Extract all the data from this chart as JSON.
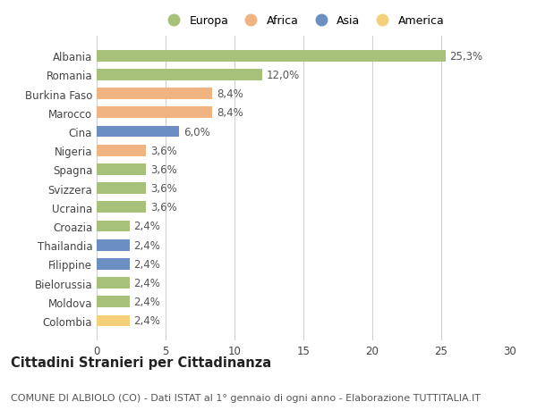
{
  "title": "Cittadini Stranieri per Cittadinanza",
  "subtitle": "COMUNE DI ALBIOLO (CO) - Dati ISTAT al 1° gennaio di ogni anno - Elaborazione TUTTITALIA.IT",
  "categories": [
    "Albania",
    "Romania",
    "Burkina Faso",
    "Marocco",
    "Cina",
    "Nigeria",
    "Spagna",
    "Svizzera",
    "Ucraina",
    "Croazia",
    "Thailandia",
    "Filippine",
    "Bielorussia",
    "Moldova",
    "Colombia"
  ],
  "values": [
    25.3,
    12.0,
    8.4,
    8.4,
    6.0,
    3.6,
    3.6,
    3.6,
    3.6,
    2.4,
    2.4,
    2.4,
    2.4,
    2.4,
    2.4
  ],
  "labels": [
    "25,3%",
    "12,0%",
    "8,4%",
    "8,4%",
    "6,0%",
    "3,6%",
    "3,6%",
    "3,6%",
    "3,6%",
    "2,4%",
    "2,4%",
    "2,4%",
    "2,4%",
    "2,4%",
    "2,4%"
  ],
  "colors": [
    "#a8c17a",
    "#a8c17a",
    "#f0b482",
    "#f0b482",
    "#6b8fc2",
    "#f0b482",
    "#a8c17a",
    "#a8c17a",
    "#a8c17a",
    "#a8c17a",
    "#6b8fc2",
    "#6b8fc2",
    "#a8c17a",
    "#a8c17a",
    "#f5d07a"
  ],
  "legend_labels": [
    "Europa",
    "Africa",
    "Asia",
    "America"
  ],
  "legend_colors": [
    "#a8c17a",
    "#f0b482",
    "#6b8fc2",
    "#f5d07a"
  ],
  "xlim": [
    0,
    30
  ],
  "xticks": [
    0,
    5,
    10,
    15,
    20,
    25,
    30
  ],
  "background_color": "#ffffff",
  "bar_height": 0.6,
  "label_fontsize": 8.5,
  "tick_fontsize": 8.5,
  "title_fontsize": 10.5,
  "subtitle_fontsize": 8.0
}
